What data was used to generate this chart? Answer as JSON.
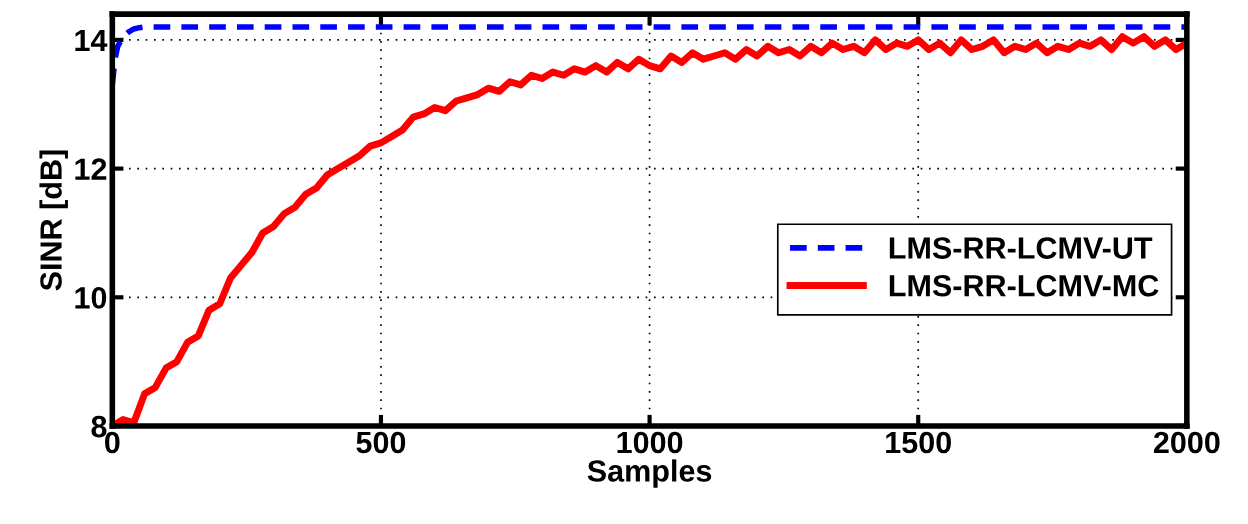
{
  "chart_data": {
    "type": "line",
    "xlabel": "Samples",
    "ylabel": "SINR [dB]",
    "xlim": [
      0,
      2000
    ],
    "xticks": [
      0,
      500,
      1000,
      1500,
      2000
    ],
    "ylim": [
      8,
      14.4
    ],
    "yticks": [
      8,
      10,
      12,
      14
    ],
    "grid": true,
    "legend": "right",
    "series": [
      {
        "name": "LMS-RR-LCMV-UT",
        "color": "#0000ff",
        "line_style": "dashed",
        "x": [
          0,
          5,
          10,
          20,
          30,
          40,
          50,
          60,
          2000
        ],
        "values": [
          13.3,
          13.7,
          13.9,
          14.05,
          14.12,
          14.17,
          14.19,
          14.2,
          14.2
        ]
      },
      {
        "name": "LMS-RR-LCMV-MC",
        "color": "#ff0000",
        "line_style": "solid",
        "x": [
          0,
          20,
          40,
          60,
          80,
          100,
          120,
          140,
          160,
          180,
          200,
          220,
          240,
          260,
          280,
          300,
          320,
          340,
          360,
          380,
          400,
          420,
          440,
          460,
          480,
          500,
          520,
          540,
          560,
          580,
          600,
          620,
          640,
          660,
          680,
          700,
          720,
          740,
          760,
          780,
          800,
          820,
          840,
          860,
          880,
          900,
          920,
          940,
          960,
          980,
          1000,
          1020,
          1040,
          1060,
          1080,
          1100,
          1120,
          1140,
          1160,
          1180,
          1200,
          1220,
          1240,
          1260,
          1280,
          1300,
          1320,
          1340,
          1360,
          1380,
          1400,
          1420,
          1440,
          1460,
          1480,
          1500,
          1520,
          1540,
          1560,
          1580,
          1600,
          1620,
          1640,
          1660,
          1680,
          1700,
          1720,
          1740,
          1760,
          1780,
          1800,
          1820,
          1840,
          1860,
          1880,
          1900,
          1920,
          1940,
          1960,
          1980,
          2000
        ],
        "values": [
          8.0,
          8.1,
          8.05,
          8.5,
          8.6,
          8.9,
          9.0,
          9.3,
          9.4,
          9.8,
          9.9,
          10.3,
          10.5,
          10.7,
          11.0,
          11.1,
          11.3,
          11.4,
          11.6,
          11.7,
          11.9,
          12.0,
          12.1,
          12.2,
          12.35,
          12.4,
          12.5,
          12.6,
          12.8,
          12.85,
          12.95,
          12.9,
          13.05,
          13.1,
          13.15,
          13.25,
          13.2,
          13.35,
          13.3,
          13.45,
          13.4,
          13.5,
          13.45,
          13.55,
          13.5,
          13.6,
          13.5,
          13.65,
          13.55,
          13.7,
          13.6,
          13.55,
          13.75,
          13.65,
          13.8,
          13.7,
          13.75,
          13.8,
          13.7,
          13.85,
          13.75,
          13.9,
          13.8,
          13.85,
          13.75,
          13.9,
          13.8,
          13.95,
          13.85,
          13.9,
          13.8,
          14.0,
          13.85,
          13.95,
          13.9,
          14.0,
          13.85,
          13.95,
          13.8,
          14.0,
          13.85,
          13.9,
          14.0,
          13.8,
          13.9,
          13.85,
          13.95,
          13.8,
          13.9,
          13.85,
          13.95,
          13.9,
          14.0,
          13.85,
          14.05,
          13.95,
          14.05,
          13.9,
          14.0,
          13.85,
          13.95
        ]
      }
    ]
  }
}
